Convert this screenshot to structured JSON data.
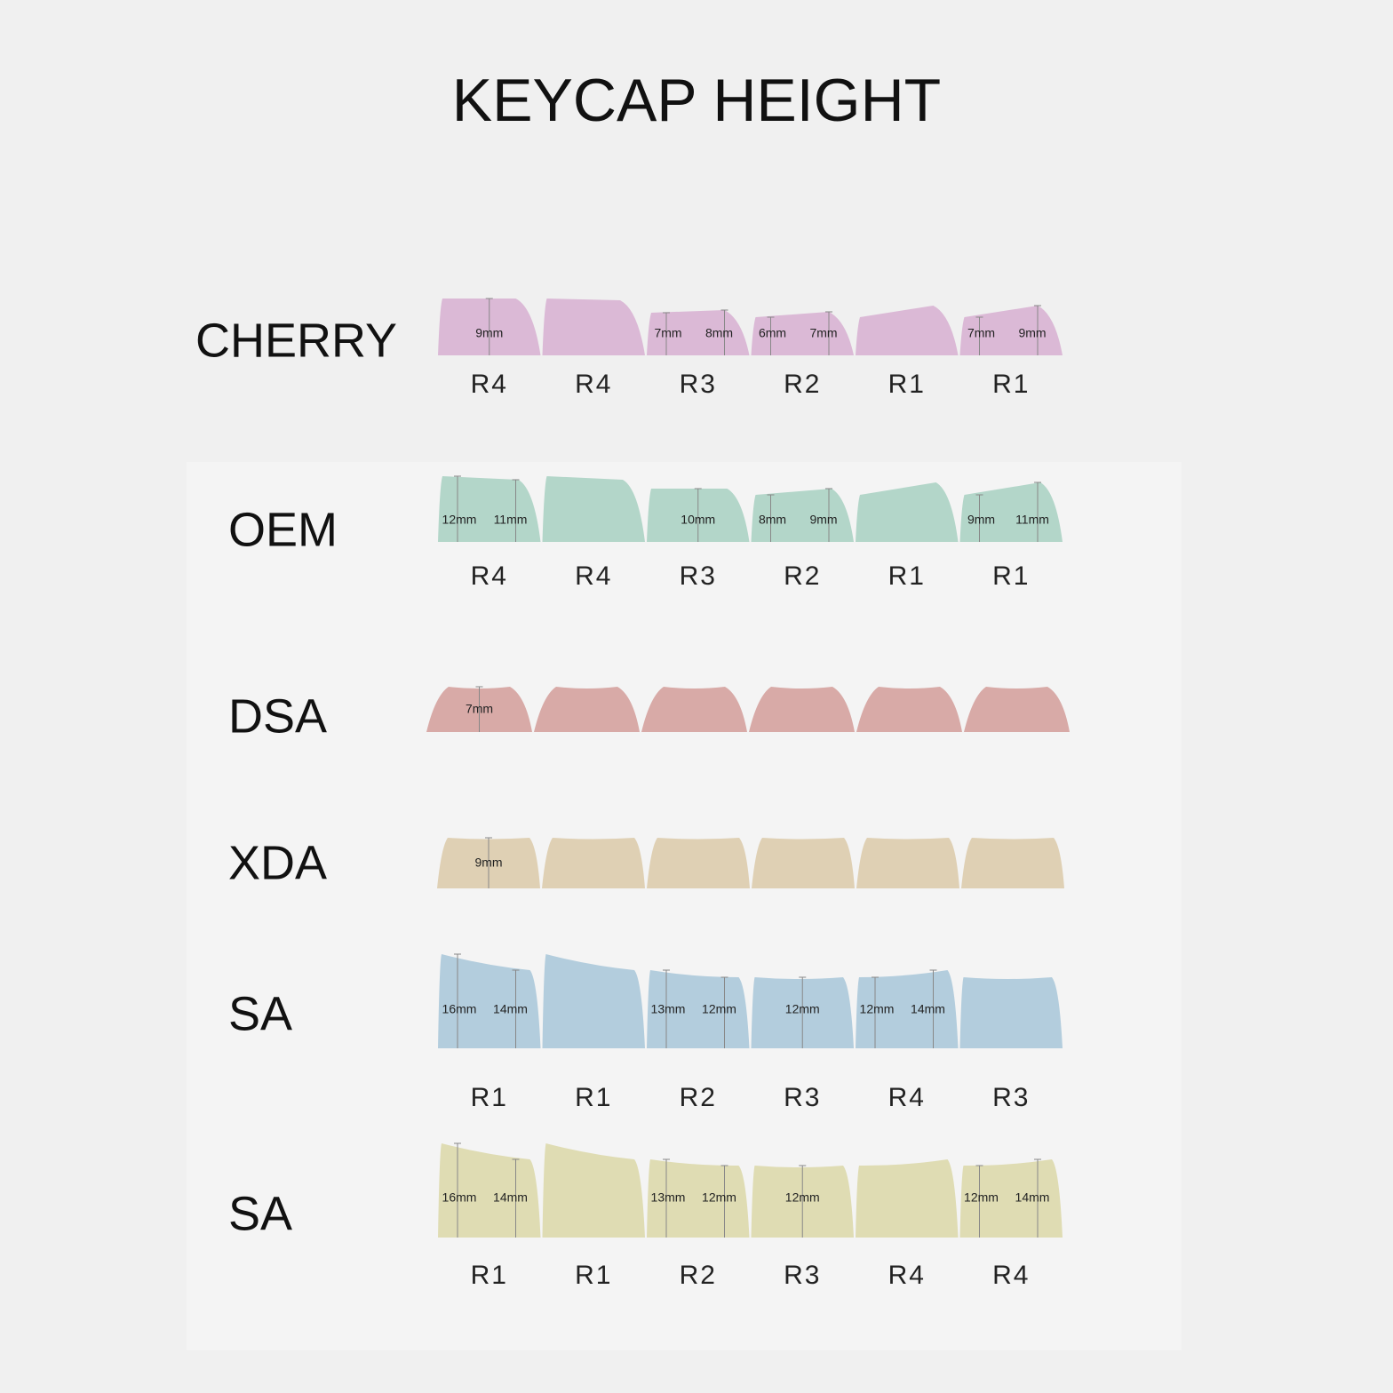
{
  "title": "KEYCAP HEIGHT",
  "profiles": [
    {
      "name": "CHERRY",
      "keys": [
        {
          "row": "R4",
          "dims": [
            "9mm"
          ]
        },
        {
          "row": "R4"
        },
        {
          "row": "R3",
          "dims": [
            "7mm",
            "8mm"
          ]
        },
        {
          "row": "R2",
          "dims": [
            "6mm",
            "7mm"
          ]
        },
        {
          "row": "R1"
        },
        {
          "row": "R1",
          "dims": [
            "7mm",
            "9mm"
          ]
        }
      ]
    },
    {
      "name": "OEM",
      "keys": [
        {
          "row": "R4",
          "dims": [
            "12mm",
            "11mm"
          ]
        },
        {
          "row": "R4"
        },
        {
          "row": "R3",
          "dims": [
            "10mm"
          ]
        },
        {
          "row": "R2",
          "dims": [
            "8mm",
            "9mm"
          ]
        },
        {
          "row": "R1"
        },
        {
          "row": "R1",
          "dims": [
            "9mm",
            "11mm"
          ]
        }
      ]
    },
    {
      "name": "DSA",
      "keys": [
        {
          "dims": [
            "7mm"
          ]
        },
        {},
        {},
        {},
        {},
        {}
      ]
    },
    {
      "name": "XDA",
      "keys": [
        {
          "dims": [
            "9mm"
          ]
        },
        {},
        {},
        {},
        {},
        {}
      ]
    },
    {
      "name": "SA",
      "keys": [
        {
          "row": "R1",
          "dims": [
            "16mm",
            "14mm"
          ]
        },
        {
          "row": "R1"
        },
        {
          "row": "R2",
          "dims": [
            "13mm",
            "12mm"
          ]
        },
        {
          "row": "R3",
          "dims": [
            "12mm"
          ]
        },
        {
          "row": "R4",
          "dims": [
            "12mm",
            "14mm"
          ]
        },
        {
          "row": "R3"
        }
      ]
    },
    {
      "name": "SA",
      "keys": [
        {
          "row": "R1",
          "dims": [
            "16mm",
            "14mm"
          ]
        },
        {
          "row": "R1"
        },
        {
          "row": "R2",
          "dims": [
            "13mm",
            "12mm"
          ]
        },
        {
          "row": "R3",
          "dims": [
            "12mm"
          ]
        },
        {
          "row": "R4"
        },
        {
          "row": "R4",
          "dims": [
            "12mm",
            "14mm"
          ]
        }
      ]
    }
  ]
}
